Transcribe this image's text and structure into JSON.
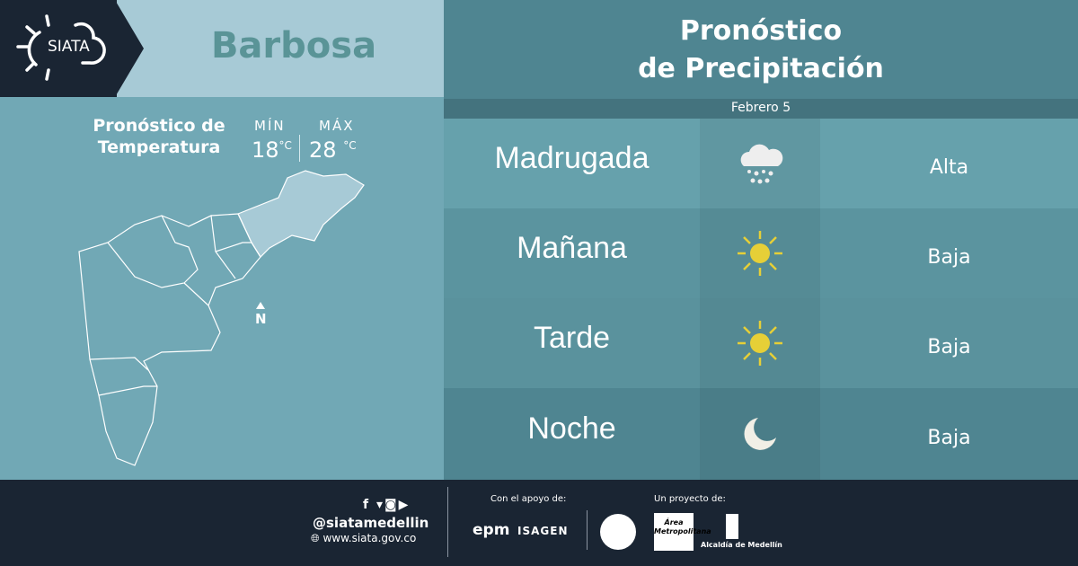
{
  "brand": {
    "logo_text": "SIATA"
  },
  "location": {
    "name": "Barbosa"
  },
  "temperature": {
    "title_line1": "Pronóstico de",
    "title_line2": "Temperatura",
    "min_label": "MÍN",
    "min_value": "18",
    "max_label": "MÁX",
    "max_value": "28",
    "unit": "°C",
    "north_label": "N"
  },
  "forecast": {
    "title_line1": "Pronóstico",
    "title_line2": "de Precipitación",
    "date": "Febrero 5",
    "rows": [
      {
        "period": "Madrugada",
        "icon": "cloud-rain-icon",
        "level": "Alta"
      },
      {
        "period": "Mañana",
        "icon": "sun-icon",
        "level": "Baja"
      },
      {
        "period": "Tarde",
        "icon": "sun-icon",
        "level": "Baja"
      },
      {
        "period": "Noche",
        "icon": "moon-icon",
        "level": "Baja"
      }
    ]
  },
  "footer": {
    "handle": "@siatamedellin",
    "website": "www.siata.gov.co",
    "support_label": "Con el apoyo de:",
    "support_logos": [
      "epm",
      "ISAGEN"
    ],
    "project_label": "Un proyecto de:",
    "project_logos": [
      "Área Metropolitana",
      "Alcaldía de Medellín"
    ]
  },
  "colors": {
    "dark": "#1a2533",
    "band": "#a7cad6",
    "panel": "#71a8b5",
    "header": "#4f8591",
    "sun": "#e6cf37"
  }
}
